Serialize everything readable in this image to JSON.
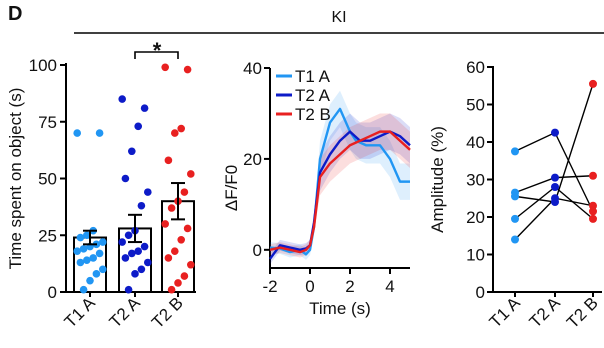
{
  "figure": {
    "panel_letter": "D",
    "group_label": "KI",
    "significance_marker": "*"
  },
  "chart_data": [
    {
      "type": "bar",
      "ylabel": "Time spent on object (s)",
      "ylim": [
        0,
        100
      ],
      "yticks": [
        "0",
        "25",
        "50",
        "75",
        "100"
      ],
      "categories": [
        "T1 A",
        "T2 A",
        "T2 B"
      ],
      "values": [
        24,
        28,
        40
      ],
      "sem": [
        3,
        6,
        8
      ],
      "colors": [
        "#2196F3",
        "#0D1BC8",
        "#E82020"
      ],
      "points": [
        [
          70,
          70,
          27,
          25,
          24,
          22,
          21,
          20,
          19,
          18,
          17,
          15,
          14,
          13,
          10,
          8,
          5,
          1
        ],
        [
          85,
          81,
          73,
          62,
          50,
          44,
          38,
          27,
          25,
          22,
          20,
          18,
          17,
          15,
          13,
          10,
          8,
          1
        ],
        [
          99,
          98,
          72,
          70,
          58,
          52,
          44,
          40,
          37,
          30,
          28,
          23,
          18,
          15,
          12,
          7,
          4,
          1
        ]
      ]
    },
    {
      "type": "line",
      "xlabel": "Time (s)",
      "ylabel": "ΔF/F0",
      "ylim": [
        -4,
        40
      ],
      "xlim": [
        -2,
        5
      ],
      "xticks": [
        "-2",
        "0",
        "2",
        "4"
      ],
      "yticks": [
        "0",
        "20",
        "40"
      ],
      "series": [
        {
          "name": "T1 A",
          "color": "#2196F3",
          "x": [
            -2,
            -1.5,
            -1,
            -0.5,
            -0.2,
            0,
            0.2,
            0.5,
            1,
            1.5,
            2,
            2.3,
            2.8,
            3.5,
            4,
            4.5,
            5
          ],
          "y": [
            0.5,
            0.3,
            -0.5,
            0,
            -1,
            0,
            5,
            20,
            28,
            31,
            26,
            24,
            23,
            23,
            20,
            15,
            15
          ]
        },
        {
          "name": "T2 A",
          "color": "#0D1BC8",
          "x": [
            -2,
            -1.5,
            -1,
            -0.5,
            -0.2,
            0,
            0.2,
            0.5,
            1,
            1.5,
            2,
            2.5,
            3,
            3.5,
            4,
            4.5,
            5
          ],
          "y": [
            -2,
            1,
            0.5,
            0,
            0.3,
            1,
            6,
            17,
            21,
            24,
            26,
            24,
            24,
            25,
            26,
            25,
            23
          ]
        },
        {
          "name": "T2 B",
          "color": "#E82020",
          "x": [
            -2,
            -1.5,
            -1,
            -0.5,
            -0.2,
            0,
            0.2,
            0.5,
            1,
            1.5,
            2,
            2.5,
            3,
            3.5,
            4,
            4.5,
            5
          ],
          "y": [
            0,
            0.5,
            0,
            -0.5,
            0,
            1,
            5,
            16,
            19,
            21,
            23,
            24,
            25,
            26,
            26,
            24,
            22
          ]
        }
      ]
    },
    {
      "type": "scatter",
      "ylabel": "Amplitude (%)",
      "ylim": [
        0,
        60
      ],
      "yticks": [
        "0",
        "10",
        "20",
        "30",
        "40",
        "50",
        "60"
      ],
      "categories": [
        "T1 A",
        "T2 A",
        "T2 B"
      ],
      "colors": [
        "#2196F3",
        "#0D1BC8",
        "#E82020"
      ],
      "subjects": [
        [
          37.5,
          42.5,
          21.5
        ],
        [
          26.5,
          30.5,
          31.0
        ],
        [
          25.5,
          24.0,
          55.5
        ],
        [
          19.5,
          28.0,
          19.5
        ],
        [
          14.0,
          25.0,
          23.0
        ]
      ]
    }
  ]
}
